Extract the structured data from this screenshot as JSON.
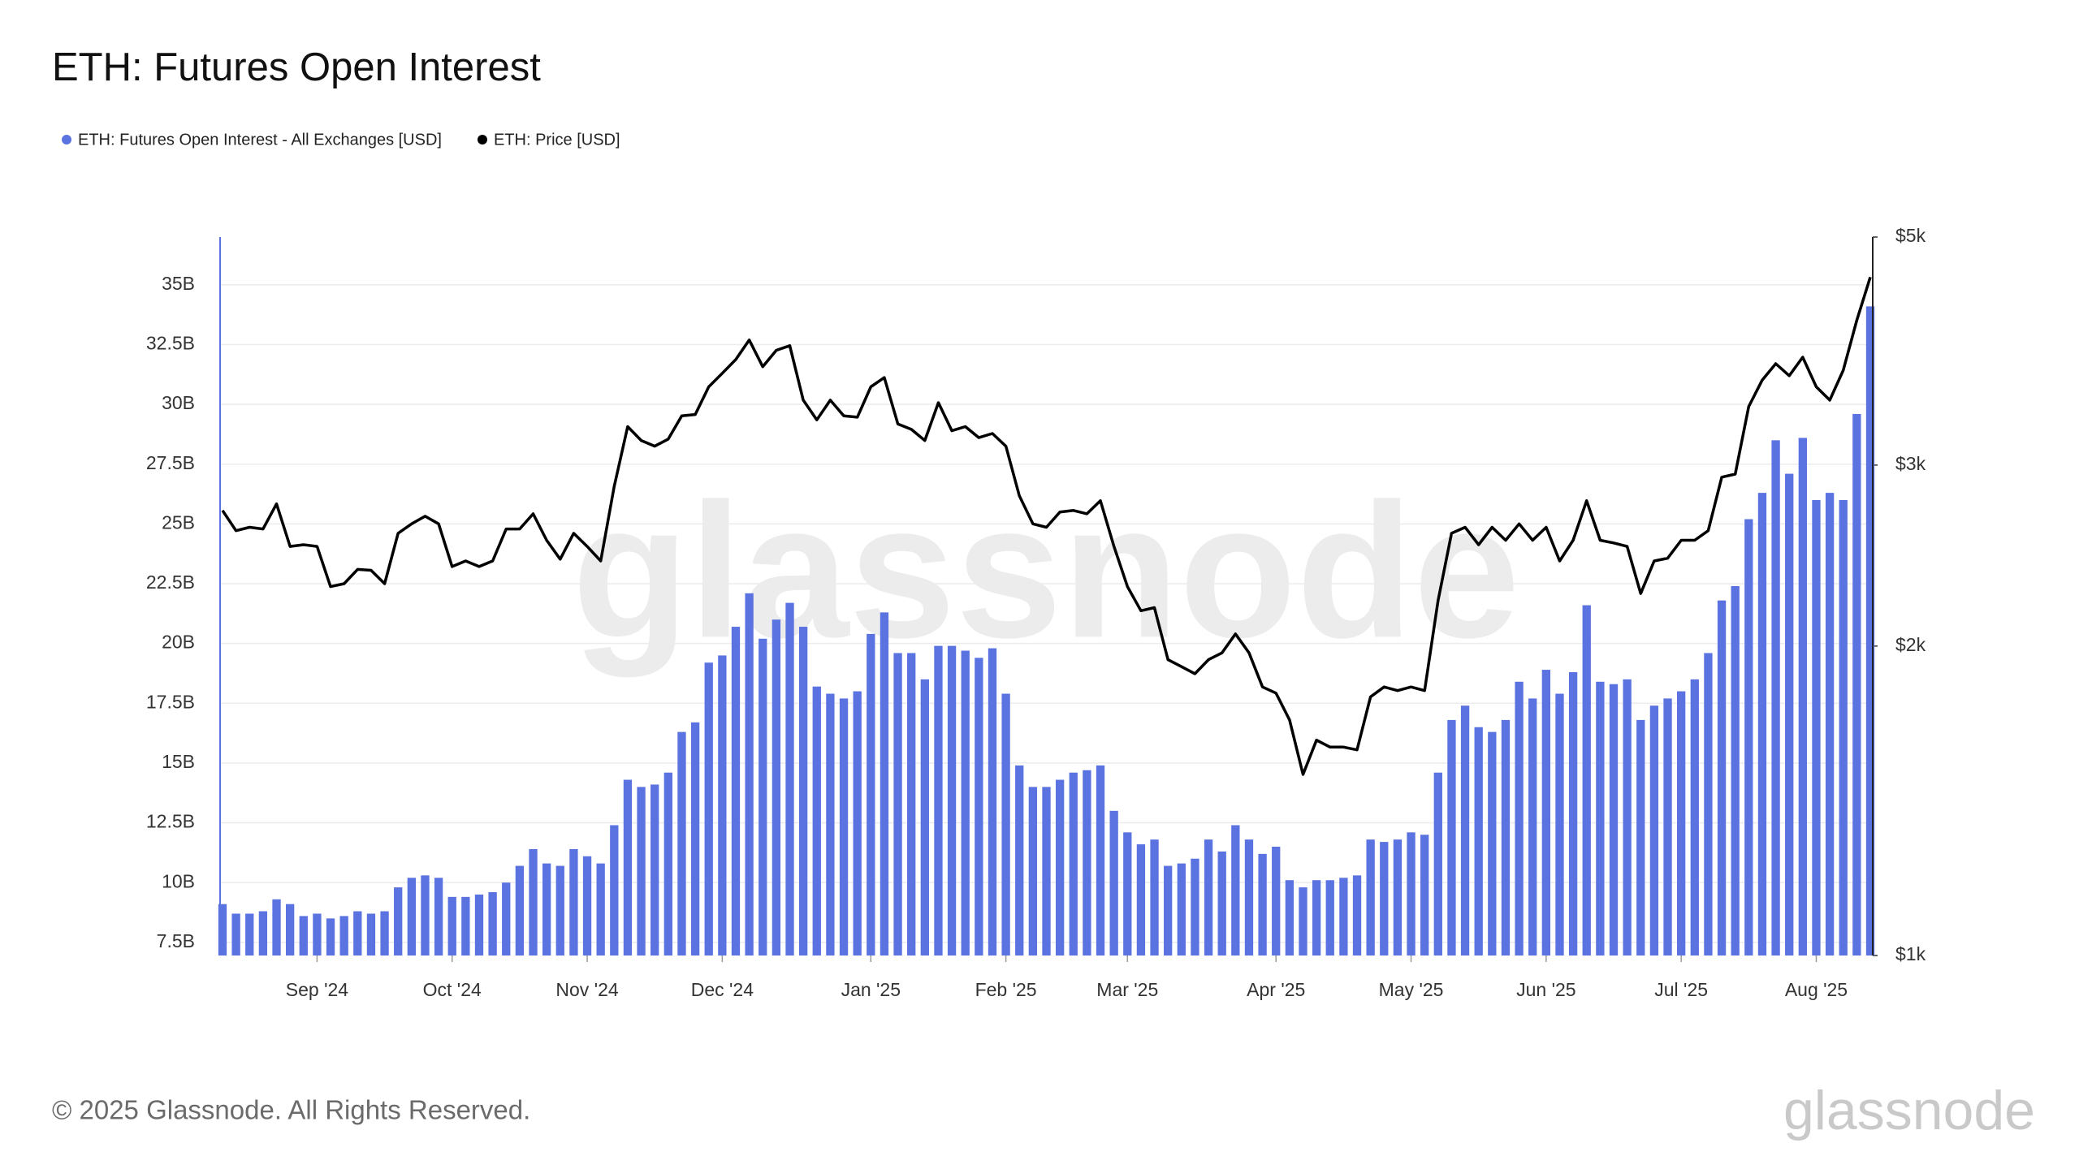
{
  "chart_data": {
    "type": "combo",
    "title": "ETH: Futures Open Interest",
    "footer": "© 2025 Glassnode. All Rights Reserved.",
    "logo": "glassnode",
    "watermark": "glassnode",
    "categories": [
      null,
      null,
      null,
      null,
      null,
      null,
      null,
      "Sep '24",
      null,
      null,
      null,
      null,
      null,
      null,
      null,
      null,
      null,
      "Oct '24",
      null,
      null,
      null,
      null,
      null,
      null,
      null,
      null,
      null,
      "Nov '24",
      null,
      null,
      null,
      null,
      null,
      null,
      null,
      null,
      null,
      "Dec '24",
      null,
      null,
      null,
      null,
      null,
      null,
      null,
      null,
      null,
      null,
      "Jan '25",
      null,
      null,
      null,
      null,
      null,
      null,
      null,
      null,
      null,
      "Feb '25",
      null,
      null,
      null,
      null,
      null,
      null,
      null,
      null,
      "Mar '25",
      null,
      null,
      null,
      null,
      null,
      null,
      null,
      null,
      null,
      null,
      "Apr '25",
      null,
      null,
      null,
      null,
      null,
      null,
      null,
      null,
      null,
      "May '25",
      null,
      null,
      null,
      null,
      null,
      null,
      null,
      null,
      null,
      "Jun '25",
      null,
      null,
      null,
      null,
      null,
      null,
      null,
      null,
      null,
      "Jul '25",
      null,
      null,
      null,
      null,
      null,
      null,
      null,
      null,
      null,
      "Aug '25",
      null,
      null,
      null,
      null
    ],
    "series": [
      {
        "name": "ETH: Futures Open Interest - All Exchanges [USD]",
        "type": "bar",
        "color": "#5b73e0",
        "values": [
          9.1,
          8.7,
          8.7,
          8.8,
          9.3,
          9.1,
          8.6,
          8.7,
          8.5,
          8.6,
          8.8,
          8.7,
          8.8,
          9.8,
          10.2,
          10.3,
          10.2,
          9.4,
          9.4,
          9.5,
          9.6,
          10.0,
          10.7,
          11.4,
          10.8,
          10.7,
          11.4,
          11.1,
          10.8,
          12.4,
          14.3,
          14.0,
          14.1,
          14.6,
          16.3,
          16.7,
          19.2,
          19.5,
          20.7,
          22.1,
          20.2,
          21.0,
          21.7,
          20.7,
          18.2,
          17.9,
          17.7,
          18.0,
          20.4,
          21.3,
          19.6,
          19.6,
          18.5,
          19.9,
          19.9,
          19.7,
          19.4,
          19.8,
          17.9,
          14.9,
          14.0,
          14.0,
          14.3,
          14.6,
          14.7,
          14.9,
          13.0,
          12.1,
          11.6,
          11.8,
          10.7,
          10.8,
          11.0,
          11.8,
          11.3,
          12.4,
          11.8,
          11.2,
          11.5,
          10.1,
          9.8,
          10.1,
          10.1,
          10.2,
          10.3,
          11.8,
          11.7,
          11.8,
          12.1,
          12.0,
          14.6,
          16.8,
          17.4,
          16.5,
          16.3,
          16.8,
          18.4,
          17.7,
          18.9,
          17.9,
          18.8,
          21.6,
          18.4,
          18.3,
          18.5,
          16.8,
          17.4,
          17.7,
          18.0,
          18.5,
          19.6,
          21.8,
          22.4,
          25.2,
          26.3,
          28.5,
          27.1,
          28.6,
          26.0,
          26.3,
          26.0,
          29.6,
          34.1
        ]
      },
      {
        "name": "ETH: Price [USD]",
        "type": "line",
        "axis": "y2",
        "color": "#000000",
        "values": [
          2710,
          2590,
          2610,
          2600,
          2750,
          2500,
          2510,
          2500,
          2285,
          2300,
          2375,
          2370,
          2300,
          2575,
          2630,
          2675,
          2630,
          2390,
          2420,
          2390,
          2420,
          2600,
          2600,
          2690,
          2535,
          2430,
          2575,
          2500,
          2420,
          2860,
          3270,
          3170,
          3130,
          3180,
          3350,
          3360,
          3575,
          3685,
          3800,
          3970,
          3740,
          3880,
          3920,
          3470,
          3320,
          3470,
          3350,
          3340,
          3575,
          3650,
          3290,
          3250,
          3170,
          3450,
          3240,
          3270,
          3190,
          3220,
          3130,
          2800,
          2630,
          2610,
          2700,
          2710,
          2690,
          2770,
          2500,
          2285,
          2165,
          2180,
          1940,
          1910,
          1880,
          1940,
          1970,
          2055,
          1970,
          1825,
          1800,
          1695,
          1500,
          1620,
          1595,
          1595,
          1585,
          1785,
          1825,
          1810,
          1825,
          1810,
          2215,
          2575,
          2610,
          2510,
          2610,
          2535,
          2630,
          2535,
          2610,
          2420,
          2535,
          2770,
          2535,
          2520,
          2500,
          2250,
          2420,
          2435,
          2535,
          2535,
          2590,
          2920,
          2940,
          3420,
          3630,
          3765,
          3665,
          3820,
          3575,
          3470,
          3710,
          4150,
          4570
        ]
      }
    ],
    "ylim": [
      6.95,
      37.0
    ],
    "yticks": [
      {
        "value": 7.5,
        "label": "7.5B"
      },
      {
        "value": 10,
        "label": "10B"
      },
      {
        "value": 12.5,
        "label": "12.5B"
      },
      {
        "value": 15,
        "label": "15B"
      },
      {
        "value": 17.5,
        "label": "17.5B"
      },
      {
        "value": 20,
        "label": "20B"
      },
      {
        "value": 22.5,
        "label": "22.5B"
      },
      {
        "value": 25,
        "label": "25B"
      },
      {
        "value": 27.5,
        "label": "27.5B"
      },
      {
        "value": 30,
        "label": "30B"
      },
      {
        "value": 32.5,
        "label": "32.5B"
      },
      {
        "value": 35,
        "label": "35B"
      }
    ],
    "y2lim": [
      1000,
      5000
    ],
    "y2ticks": [
      {
        "value": 1000,
        "label": "$1k"
      },
      {
        "value": 2000,
        "label": "$2k"
      },
      {
        "value": 3000,
        "label": "$3k"
      },
      {
        "value": 5000,
        "label": "$5k"
      }
    ],
    "y2log": true,
    "grid": true,
    "legend": "top-left"
  }
}
